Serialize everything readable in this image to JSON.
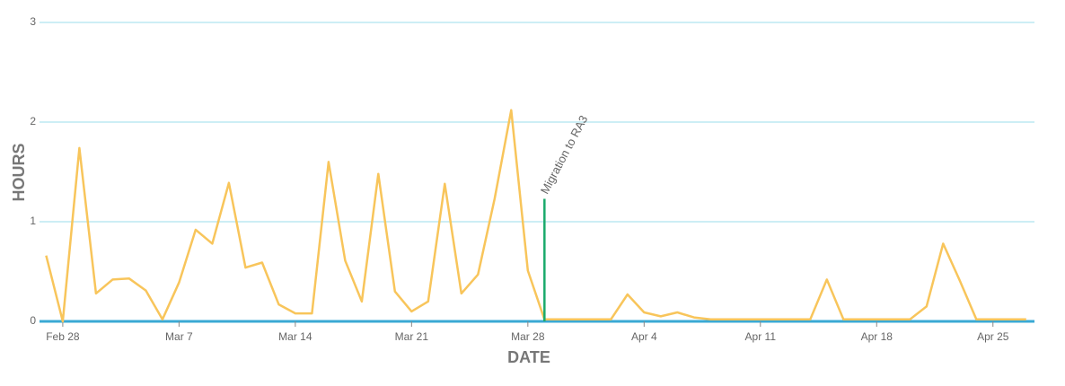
{
  "chart_data": {
    "type": "line",
    "x_label": "DATE",
    "y_label": "HOURS",
    "x": [
      "Feb 27",
      "Feb 28",
      "Mar 1",
      "Mar 2",
      "Mar 3",
      "Mar 4",
      "Mar 5",
      "Mar 6",
      "Mar 7",
      "Mar 8",
      "Mar 9",
      "Mar 10",
      "Mar 11",
      "Mar 12",
      "Mar 13",
      "Mar 14",
      "Mar 15",
      "Mar 16",
      "Mar 17",
      "Mar 18",
      "Mar 19",
      "Mar 20",
      "Mar 21",
      "Mar 22",
      "Mar 23",
      "Mar 24",
      "Mar 25",
      "Mar 26",
      "Mar 27",
      "Mar 28",
      "Mar 29",
      "Mar 30",
      "Mar 31",
      "Apr 1",
      "Apr 2",
      "Apr 3",
      "Apr 4",
      "Apr 5",
      "Apr 6",
      "Apr 7",
      "Apr 8",
      "Apr 9",
      "Apr 10",
      "Apr 11",
      "Apr 12",
      "Apr 13",
      "Apr 14",
      "Apr 15",
      "Apr 16",
      "Apr 17",
      "Apr 18",
      "Apr 19",
      "Apr 20",
      "Apr 21",
      "Apr 22",
      "Apr 23",
      "Apr 24",
      "Apr 25",
      "Apr 26",
      "Apr 27"
    ],
    "series": [
      {
        "color": "#f8c55b",
        "values": [
          0.66,
          0,
          1.74,
          0.28,
          0.42,
          0.43,
          0.31,
          0.02,
          0.39,
          0.92,
          0.78,
          1.39,
          0.54,
          0.59,
          0.17,
          0.08,
          0.08,
          1.6,
          0.61,
          0.2,
          1.48,
          0.3,
          0.1,
          0.2,
          1.38,
          0.28,
          0.47,
          1.23,
          2.12,
          0.51,
          0.02,
          0.02,
          0.02,
          0.02,
          0.02,
          0.27,
          0.09,
          0.05,
          0.09,
          0.04,
          0.02,
          0.02,
          0.02,
          0.02,
          0.02,
          0.02,
          0.02,
          0.42,
          0.02,
          0.02,
          0.02,
          0.02,
          0.02,
          0.15,
          0.78,
          0.41,
          0.02,
          0.02,
          0.02,
          0.02
        ]
      }
    ],
    "ylim": [
      0,
      3
    ],
    "yticks": [
      0,
      1,
      2,
      3
    ],
    "xticks": [
      "Feb 28",
      "Mar 7",
      "Mar 14",
      "Mar 21",
      "Mar 28",
      "Apr 4",
      "Apr 11",
      "Apr 18",
      "Apr 25"
    ],
    "grid": true,
    "grid_color": "#cdeef5",
    "zero_line_color": "#3aa9d4",
    "annotations": [
      {
        "text": "Migration to RA3",
        "x": "Mar 29",
        "y": 1.23,
        "color": "#1aaa6b"
      }
    ]
  }
}
